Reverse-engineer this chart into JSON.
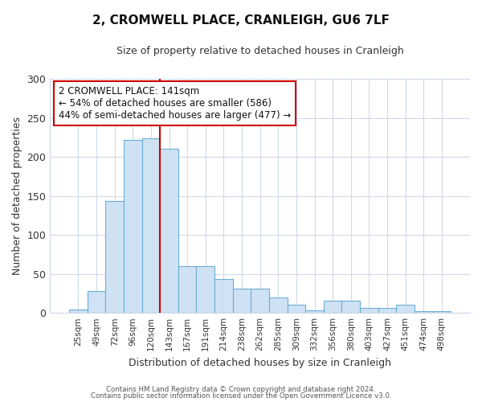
{
  "title": "2, CROMWELL PLACE, CRANLEIGH, GU6 7LF",
  "subtitle": "Size of property relative to detached houses in Cranleigh",
  "xlabel": "Distribution of detached houses by size in Cranleigh",
  "ylabel": "Number of detached properties",
  "bar_labels": [
    "25sqm",
    "49sqm",
    "72sqm",
    "96sqm",
    "120sqm",
    "143sqm",
    "167sqm",
    "191sqm",
    "214sqm",
    "238sqm",
    "262sqm",
    "285sqm",
    "309sqm",
    "332sqm",
    "356sqm",
    "380sqm",
    "403sqm",
    "427sqm",
    "451sqm",
    "474sqm",
    "498sqm"
  ],
  "bar_values": [
    4,
    28,
    143,
    222,
    224,
    210,
    60,
    60,
    43,
    31,
    31,
    20,
    10,
    3,
    16,
    16,
    6,
    6,
    10,
    2,
    2
  ],
  "bar_color": "#cfe2f3",
  "bar_edge_color": "#6baed6",
  "vline_index": 5,
  "vline_color": "#cc0000",
  "annotation_title": "2 CROMWELL PLACE: 141sqm",
  "annotation_line1": "← 54% of detached houses are smaller (586)",
  "annotation_line2": "44% of semi-detached houses are larger (477) →",
  "annotation_box_color": "#cc0000",
  "ylim": [
    0,
    300
  ],
  "yticks": [
    0,
    50,
    100,
    150,
    200,
    250,
    300
  ],
  "footer1": "Contains HM Land Registry data © Crown copyright and database right 2024.",
  "footer2": "Contains public sector information licensed under the Open Government Licence v3.0.",
  "bg_color": "#ffffff",
  "plot_bg_color": "#ffffff",
  "grid_color": "#d0daea",
  "figsize": [
    6.0,
    5.0
  ],
  "dpi": 100
}
